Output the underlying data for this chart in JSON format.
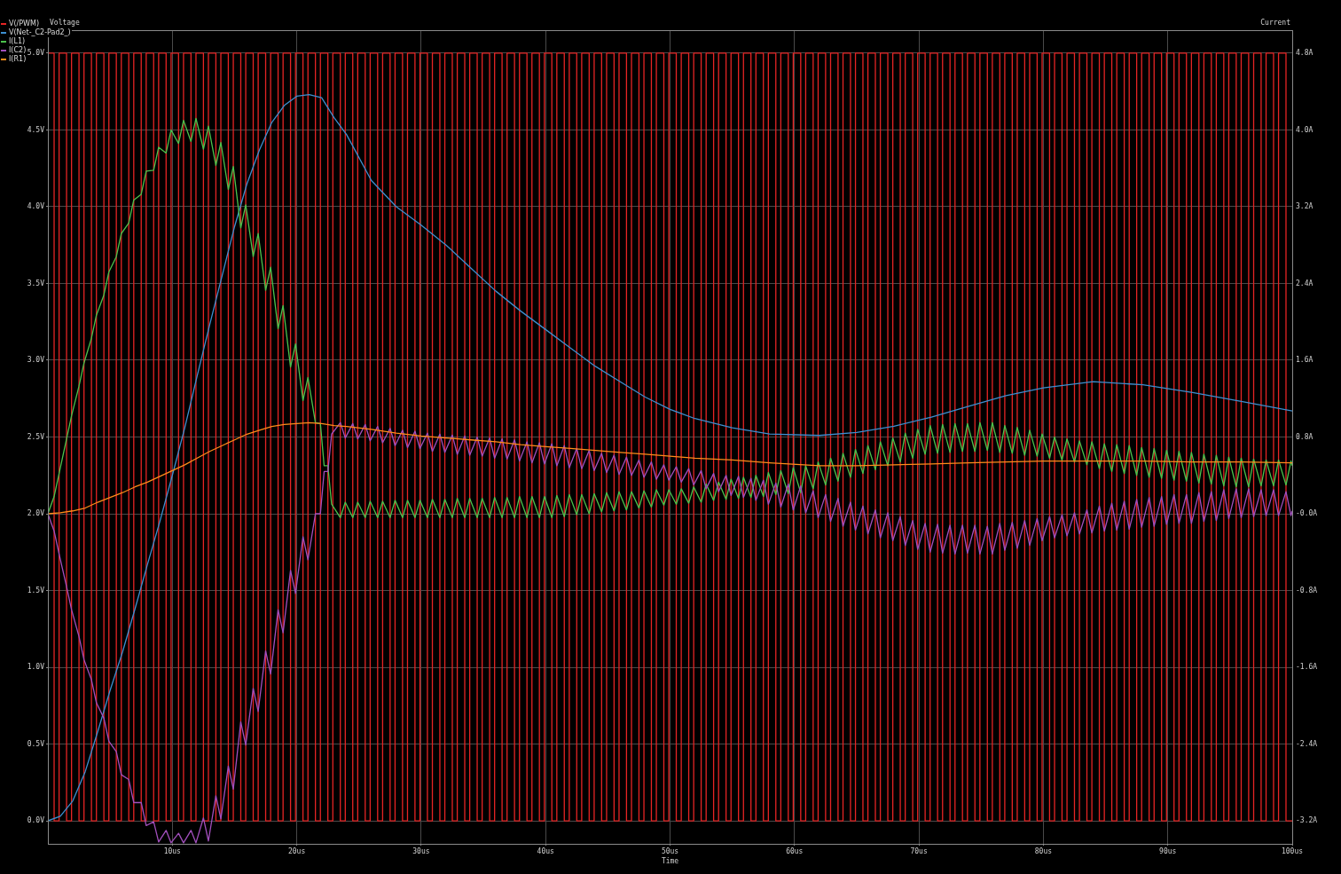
{
  "chart_data": {
    "type": "line",
    "xlabel": "Time",
    "ylabel": "Voltage",
    "y2label": "Current",
    "xlim": [
      0,
      100
    ],
    "ylim": [
      -0.15,
      5.15
    ],
    "y2lim": [
      -3.44,
      5.04
    ],
    "xticks": [
      {
        "value": 10,
        "label": "10us"
      },
      {
        "value": 20,
        "label": "20us"
      },
      {
        "value": 30,
        "label": "30us"
      },
      {
        "value": 40,
        "label": "40us"
      },
      {
        "value": 50,
        "label": "50us"
      },
      {
        "value": 60,
        "label": "60us"
      },
      {
        "value": 70,
        "label": "70us"
      },
      {
        "value": 80,
        "label": "80us"
      },
      {
        "value": 90,
        "label": "90us"
      },
      {
        "value": 100,
        "label": "100us"
      }
    ],
    "yticks": [
      {
        "value": 0,
        "label": "0.0V"
      },
      {
        "value": 0.5,
        "label": "0.5V"
      },
      {
        "value": 1,
        "label": "1.0V"
      },
      {
        "value": 1.5,
        "label": "1.5V"
      },
      {
        "value": 2,
        "label": "2.0V"
      },
      {
        "value": 2.5,
        "label": "2.5V"
      },
      {
        "value": 3,
        "label": "3.0V"
      },
      {
        "value": 3.5,
        "label": "3.5V"
      },
      {
        "value": 4,
        "label": "4.0V"
      },
      {
        "value": 4.5,
        "label": "4.5V"
      },
      {
        "value": 5,
        "label": "5.0V"
      }
    ],
    "y2ticks": [
      {
        "value": -3.2,
        "label": "-3.2A"
      },
      {
        "value": -2.4,
        "label": "-2.4A"
      },
      {
        "value": -1.6,
        "label": "-1.6A"
      },
      {
        "value": -0.8,
        "label": "-0.8A"
      },
      {
        "value": 0,
        "label": "-0.0A"
      },
      {
        "value": 0.8,
        "label": "0.8A"
      },
      {
        "value": 1.6,
        "label": "1.6A"
      },
      {
        "value": 2.4,
        "label": "2.4A"
      },
      {
        "value": 3.2,
        "label": "3.2A"
      },
      {
        "value": 4,
        "label": "4.0A"
      },
      {
        "value": 4.8,
        "label": "4.8A"
      }
    ],
    "grid": true,
    "legend": "top left",
    "series": [
      {
        "name": "V(/PWM)",
        "type": "step",
        "color": "#e52424",
        "x": [
          0,
          0.5,
          0.9,
          1.5,
          1.9,
          2.5,
          2.9,
          3.5,
          3.9,
          4.5,
          4.9,
          5.5,
          5.9,
          6.5,
          6.9,
          7.5,
          7.9,
          8.5,
          8.9,
          9.5,
          9.9,
          10.5,
          10.9,
          11.5,
          11.9,
          12.5,
          12.9,
          13.5,
          13.9,
          14.5,
          14.9,
          15.5,
          15.9,
          16.5,
          16.9,
          17.5,
          17.9,
          18.5,
          18.9,
          19.5,
          19.9,
          20.5,
          20.9,
          21.5,
          21.9,
          22.5,
          22.9,
          23.5,
          23.9,
          24.5,
          24.9,
          25.5,
          25.9,
          26.5,
          26.9,
          27.5,
          27.9,
          28.5,
          28.9,
          29.5,
          29.9,
          30.5,
          30.9,
          31.5,
          31.9,
          32.5,
          32.9,
          33.5,
          33.9,
          34.5,
          34.9,
          35.5,
          35.9,
          36.5,
          36.9,
          37.5,
          37.9,
          38.5,
          38.9,
          39.5,
          39.9,
          40.5,
          40.9,
          41.5,
          41.9,
          42.5,
          42.9,
          43.5,
          43.9,
          44.5,
          44.9,
          45.5,
          45.9,
          46.5,
          46.9,
          47.5,
          47.9,
          48.5,
          48.9,
          49.5,
          49.9,
          50.5,
          50.9,
          51.5,
          51.9,
          52.5,
          52.9,
          53.5,
          53.9,
          54.5,
          54.9,
          55.5,
          55.9,
          56.5,
          56.9,
          57.5,
          57.9,
          58.5,
          58.9,
          59.5,
          59.9,
          60.5,
          60.9,
          61.5,
          61.9,
          62.5,
          62.9,
          63.5,
          63.9,
          64.5,
          64.9,
          65.5,
          65.9,
          66.5,
          66.9,
          67.5,
          67.9,
          68.5,
          68.9,
          69.5,
          69.9,
          70.5,
          70.9,
          71.5,
          71.9,
          72.5,
          72.9,
          73.5,
          73.9,
          74.5,
          74.9,
          75.5,
          75.9,
          76.5,
          76.9,
          77.5,
          77.9,
          78.5,
          78.9,
          79.5,
          79.9,
          80.5,
          80.9,
          81.5,
          81.9,
          82.5,
          82.9,
          83.5,
          83.9,
          84.5,
          84.9,
          85.5,
          85.9,
          86.5,
          86.9,
          87.5,
          87.9,
          88.5,
          88.9,
          89.5,
          89.9,
          90.5,
          90.9,
          91.5,
          91.9,
          92.5,
          92.9,
          93.5,
          93.9,
          94.5,
          94.9,
          95.5,
          95.9,
          96.5,
          96.9,
          97.5,
          97.9,
          98.5,
          98.9,
          99.5,
          99.9,
          100
        ],
        "values": [
          0,
          5,
          0,
          5,
          0,
          5,
          0,
          5,
          0,
          5,
          0,
          5,
          0,
          5,
          0,
          5,
          0,
          5,
          0,
          5,
          0,
          5,
          0,
          5,
          0,
          5,
          0,
          5,
          0,
          5,
          0,
          5,
          0,
          5,
          0,
          5,
          0,
          5,
          0,
          5,
          0,
          5,
          0,
          5,
          0,
          5,
          0,
          5,
          0,
          5,
          0,
          5,
          0,
          5,
          0,
          5,
          0,
          5,
          0,
          5,
          0,
          5,
          0,
          5,
          0,
          5,
          0,
          5,
          0,
          5,
          0,
          5,
          0,
          5,
          0,
          5,
          0,
          5,
          0,
          5,
          0,
          5,
          0,
          5,
          0,
          5,
          0,
          5,
          0,
          5,
          0,
          5,
          0,
          5,
          0,
          5,
          0,
          5,
          0,
          5,
          0,
          5,
          0,
          5,
          0,
          5,
          0,
          5,
          0,
          5,
          0,
          5,
          0,
          5,
          0,
          5,
          0,
          5,
          0,
          5,
          0,
          5,
          0,
          5,
          0,
          5,
          0,
          5,
          0,
          5,
          0,
          5,
          0,
          5,
          0,
          5,
          0,
          5,
          0,
          5,
          0,
          5,
          0,
          5,
          0,
          5,
          0,
          5,
          0,
          5,
          0,
          5,
          0,
          5,
          0,
          5,
          0,
          5,
          0,
          5,
          0,
          5,
          0,
          5,
          0,
          5,
          0,
          5,
          0,
          5,
          0,
          5,
          0,
          5,
          0,
          5,
          0,
          5,
          0,
          5,
          0,
          5,
          0,
          5,
          0,
          5,
          0,
          5,
          0,
          5,
          0,
          5,
          0,
          5,
          0,
          5,
          0,
          5,
          0,
          5,
          0,
          0
        ]
      },
      {
        "name": "V(Net-_C2-Pad2_)",
        "type": "line",
        "color": "#3d8fd1",
        "x": [
          0,
          1,
          2,
          3,
          4,
          5,
          6,
          7,
          8,
          9,
          10,
          11,
          12,
          13,
          14,
          15,
          16,
          17,
          18,
          19,
          20,
          21,
          22,
          23,
          24,
          26,
          28,
          30,
          32,
          34,
          36,
          38,
          40,
          42,
          44,
          46,
          48,
          50,
          52,
          55,
          58,
          62,
          65,
          68,
          71,
          74,
          77,
          80,
          84,
          88,
          92,
          96,
          100
        ],
        "values": [
          0,
          0.03,
          0.13,
          0.32,
          0.58,
          0.85,
          1.1,
          1.38,
          1.67,
          1.95,
          2.25,
          2.56,
          2.9,
          3.23,
          3.55,
          3.87,
          4.15,
          4.37,
          4.55,
          4.66,
          4.72,
          4.73,
          4.71,
          4.58,
          4.47,
          4.17,
          4.0,
          3.88,
          3.75,
          3.6,
          3.45,
          3.32,
          3.2,
          3.08,
          2.96,
          2.86,
          2.76,
          2.68,
          2.62,
          2.56,
          2.52,
          2.51,
          2.53,
          2.57,
          2.63,
          2.7,
          2.77,
          2.82,
          2.86,
          2.84,
          2.79,
          2.73,
          2.67
        ]
      },
      {
        "name": "I(L1)",
        "type": "line",
        "axis": "y2",
        "color": "#4cc24c",
        "x": [
          0,
          0.5,
          0.9,
          1.5,
          1.9,
          2.5,
          2.9,
          3.5,
          3.9,
          4.5,
          4.9,
          5.5,
          5.9,
          6.5,
          6.9,
          7.5,
          7.9,
          8.5,
          8.9,
          9.5,
          9.9,
          10.5,
          10.9,
          11.5,
          11.9,
          12.5,
          12.9,
          13.5,
          13.9,
          14.5,
          14.9,
          15.5,
          15.9,
          16.5,
          16.9,
          17.5,
          17.9,
          18.5,
          18.9,
          19.5,
          19.9,
          20.5,
          20.9,
          21.5,
          21.9,
          22.2,
          22.5,
          22.8,
          23.5,
          23.9,
          24.5,
          24.9,
          25.5,
          25.9,
          26.5,
          26.9,
          27.5,
          27.9,
          28.5,
          28.9,
          29.5,
          29.9,
          30.5,
          30.9,
          31.5,
          31.9,
          32.5,
          32.9,
          33.5,
          33.9,
          34.5,
          34.9,
          35.5,
          35.9,
          36.5,
          36.9,
          37.5,
          37.9,
          38.5,
          38.9,
          39.5,
          39.9,
          40.5,
          40.9,
          41.5,
          41.9,
          42.5,
          42.9,
          43.5,
          43.9,
          44.5,
          44.9,
          45.5,
          45.9,
          46.5,
          46.9,
          47.5,
          47.9,
          48.5,
          48.9,
          49.5,
          49.9,
          50.5,
          50.9,
          51.5,
          51.9,
          52.5,
          52.9,
          53.5,
          53.9,
          54.5,
          54.9,
          55.5,
          55.9,
          56.5,
          56.9,
          57.5,
          57.9,
          58.5,
          58.9,
          59.5,
          59.9,
          60.5,
          60.9,
          61.5,
          61.9,
          62.5,
          62.9,
          63.5,
          63.9,
          64.5,
          64.9,
          65.5,
          65.9,
          66.5,
          66.9,
          67.5,
          67.9,
          68.5,
          68.9,
          69.5,
          69.9,
          70.5,
          70.9,
          71.5,
          71.9,
          72.5,
          72.9,
          73.5,
          73.9,
          74.5,
          74.9,
          75.5,
          75.9,
          76.5,
          76.9,
          77.5,
          77.9,
          78.5,
          78.9,
          79.5,
          79.9,
          80.5,
          80.9,
          81.5,
          81.9,
          82.5,
          82.9,
          83.5,
          83.9,
          84.5,
          84.9,
          85.5,
          85.9,
          86.5,
          86.9,
          87.5,
          87.9,
          88.5,
          88.9,
          89.5,
          89.9,
          90.5,
          90.9,
          91.5,
          91.9,
          92.5,
          92.9,
          93.5,
          93.9,
          94.5,
          94.9,
          95.5,
          95.9,
          96.5,
          96.9,
          97.5,
          97.9,
          98.5,
          98.9,
          99.5,
          99.9,
          100
        ],
        "values": [
          0,
          0.18,
          0.42,
          0.78,
          1.02,
          1.33,
          1.57,
          1.83,
          2.07,
          2.28,
          2.52,
          2.68,
          2.92,
          3.03,
          3.27,
          3.33,
          3.57,
          3.58,
          3.82,
          3.76,
          4.0,
          3.86,
          4.1,
          3.88,
          4.12,
          3.8,
          4.04,
          3.63,
          3.87,
          3.38,
          3.62,
          2.98,
          3.22,
          2.68,
          2.92,
          2.33,
          2.57,
          1.93,
          2.17,
          1.53,
          1.77,
          1.18,
          1.42,
          0.95,
          0.94,
          0.5,
          0.5,
          0.1,
          -0.04,
          0.12,
          -0.04,
          0.12,
          -0.04,
          0.13,
          -0.04,
          0.13,
          -0.04,
          0.14,
          -0.04,
          0.14,
          -0.04,
          0.14,
          -0.04,
          0.15,
          -0.04,
          0.15,
          -0.04,
          0.16,
          -0.04,
          0.16,
          -0.04,
          0.16,
          -0.04,
          0.17,
          -0.04,
          0.17,
          -0.04,
          0.18,
          -0.04,
          0.18,
          -0.04,
          0.18,
          -0.04,
          0.19,
          -0.03,
          0.2,
          -0.01,
          0.2,
          0,
          0.21,
          0.02,
          0.22,
          0.03,
          0.23,
          0.04,
          0.23,
          0.06,
          0.24,
          0.07,
          0.25,
          0.09,
          0.25,
          0.1,
          0.26,
          0.11,
          0.28,
          0.12,
          0.31,
          0.14,
          0.33,
          0.15,
          0.36,
          0.16,
          0.38,
          0.17,
          0.4,
          0.18,
          0.43,
          0.2,
          0.45,
          0.21,
          0.48,
          0.22,
          0.5,
          0.26,
          0.54,
          0.3,
          0.58,
          0.34,
          0.63,
          0.38,
          0.67,
          0.42,
          0.71,
          0.46,
          0.75,
          0.5,
          0.79,
          0.54,
          0.84,
          0.58,
          0.88,
          0.62,
          0.92,
          0.63,
          0.93,
          0.64,
          0.94,
          0.65,
          0.94,
          0.65,
          0.95,
          0.66,
          0.95,
          0.64,
          0.92,
          0.63,
          0.9,
          0.61,
          0.87,
          0.6,
          0.83,
          0.58,
          0.8,
          0.56,
          0.78,
          0.54,
          0.76,
          0.51,
          0.75,
          0.47,
          0.73,
          0.44,
          0.72,
          0.42,
          0.71,
          0.4,
          0.69,
          0.38,
          0.68,
          0.37,
          0.66,
          0.35,
          0.65,
          0.34,
          0.64,
          0.32,
          0.62,
          0.31,
          0.61,
          0.29,
          0.59,
          0.28,
          0.58,
          0.28,
          0.57,
          0.29,
          0.56,
          0.29,
          0.56,
          0.3,
          0.55,
          0.5
        ]
      },
      {
        "name": "I(C2)",
        "type": "line",
        "axis": "y2",
        "color": "#a24fbd",
        "x": [
          0,
          0.5,
          0.9,
          1.5,
          1.9,
          2.5,
          2.9,
          3.5,
          3.9,
          4.5,
          4.9,
          5.5,
          5.9,
          6.5,
          6.9,
          7.5,
          7.9,
          8.5,
          8.9,
          9.5,
          9.9,
          10.5,
          10.9,
          11.5,
          11.9,
          12.5,
          12.9,
          13.5,
          13.9,
          14.5,
          14.9,
          15.5,
          15.9,
          16.5,
          16.9,
          17.5,
          17.9,
          18.5,
          18.9,
          19.5,
          19.9,
          20.5,
          20.9,
          21.5,
          21.9,
          22.2,
          22.5,
          22.8,
          23.5,
          23.9,
          24.5,
          24.9,
          25.5,
          25.9,
          26.5,
          26.9,
          27.5,
          27.9,
          28.5,
          28.9,
          29.5,
          29.9,
          30.5,
          30.9,
          31.5,
          31.9,
          32.5,
          32.9,
          33.5,
          33.9,
          34.5,
          34.9,
          35.5,
          35.9,
          36.5,
          36.9,
          37.5,
          37.9,
          38.5,
          38.9,
          39.5,
          39.9,
          40.5,
          40.9,
          41.5,
          41.9,
          42.5,
          42.9,
          43.5,
          43.9,
          44.5,
          44.9,
          45.5,
          45.9,
          46.5,
          46.9,
          47.5,
          47.9,
          48.5,
          48.9,
          49.5,
          49.9,
          50.5,
          50.9,
          51.5,
          51.9,
          52.5,
          52.9,
          53.5,
          53.9,
          54.5,
          54.9,
          55.5,
          55.9,
          56.5,
          56.9,
          57.5,
          57.9,
          58.5,
          58.9,
          59.5,
          59.9,
          60.5,
          60.9,
          61.5,
          61.9,
          62.5,
          62.9,
          63.5,
          63.9,
          64.5,
          64.9,
          65.5,
          65.9,
          66.5,
          66.9,
          67.5,
          67.9,
          68.5,
          68.9,
          69.5,
          69.9,
          70.5,
          70.9,
          71.5,
          71.9,
          72.5,
          72.9,
          73.5,
          73.9,
          74.5,
          74.9,
          75.5,
          75.9,
          76.5,
          76.9,
          77.5,
          77.9,
          78.5,
          78.9,
          79.5,
          79.9,
          80.5,
          80.9,
          81.5,
          81.9,
          82.5,
          82.9,
          83.5,
          83.9,
          84.5,
          84.9,
          85.5,
          85.9,
          86.5,
          86.9,
          87.5,
          87.9,
          88.5,
          88.9,
          89.5,
          89.9,
          90.5,
          90.9,
          91.5,
          91.9,
          92.5,
          92.9,
          93.5,
          93.9,
          94.5,
          94.9,
          95.5,
          95.9,
          96.5,
          96.9,
          97.5,
          97.9,
          98.5,
          98.9,
          99.5,
          99.9,
          100
        ],
        "values": [
          0,
          -0.18,
          -0.42,
          -0.76,
          -1.0,
          -1.28,
          -1.52,
          -1.73,
          -1.97,
          -2.13,
          -2.37,
          -2.48,
          -2.72,
          -2.77,
          -3.01,
          -3.01,
          -3.25,
          -3.21,
          -3.42,
          -3.3,
          -3.43,
          -3.33,
          -3.43,
          -3.3,
          -3.43,
          -3.17,
          -3.41,
          -2.94,
          -3.18,
          -2.63,
          -2.87,
          -2.17,
          -2.41,
          -1.82,
          -2.06,
          -1.43,
          -1.67,
          -1.0,
          -1.24,
          -0.59,
          -0.83,
          -0.24,
          -0.48,
          0,
          0,
          0.44,
          0.44,
          0.83,
          0.95,
          0.79,
          0.94,
          0.78,
          0.93,
          0.76,
          0.91,
          0.74,
          0.89,
          0.71,
          0.87,
          0.69,
          0.86,
          0.68,
          0.84,
          0.65,
          0.83,
          0.64,
          0.82,
          0.62,
          0.81,
          0.61,
          0.8,
          0.6,
          0.79,
          0.58,
          0.78,
          0.57,
          0.77,
          0.55,
          0.75,
          0.53,
          0.74,
          0.52,
          0.73,
          0.5,
          0.71,
          0.48,
          0.68,
          0.47,
          0.66,
          0.45,
          0.63,
          0.43,
          0.61,
          0.41,
          0.59,
          0.4,
          0.56,
          0.38,
          0.54,
          0.36,
          0.51,
          0.35,
          0.49,
          0.33,
          0.47,
          0.3,
          0.45,
          0.26,
          0.42,
          0.23,
          0.4,
          0.19,
          0.39,
          0.17,
          0.37,
          0.14,
          0.35,
          0.1,
          0.32,
          0.07,
          0.31,
          0.04,
          0.29,
          0.01,
          0.24,
          -0.04,
          0.2,
          -0.08,
          0.16,
          -0.13,
          0.12,
          -0.17,
          0.08,
          -0.21,
          0.04,
          -0.25,
          0.01,
          -0.28,
          -0.03,
          -0.33,
          -0.07,
          -0.37,
          -0.1,
          -0.4,
          -0.11,
          -0.41,
          -0.12,
          -0.42,
          -0.12,
          -0.41,
          -0.12,
          -0.42,
          -0.13,
          -0.42,
          -0.1,
          -0.38,
          -0.09,
          -0.36,
          -0.07,
          -0.33,
          -0.05,
          -0.28,
          -0.03,
          -0.25,
          -0.01,
          -0.23,
          0.01,
          -0.21,
          0.04,
          -0.2,
          0.08,
          -0.18,
          0.11,
          -0.17,
          0.13,
          -0.16,
          0.15,
          -0.14,
          0.17,
          -0.13,
          0.18,
          -0.11,
          0.2,
          -0.1,
          0.2,
          -0.1,
          0.22,
          -0.08,
          0.23,
          -0.07,
          0.25,
          -0.05,
          0.26,
          -0.04,
          0.26,
          -0.03,
          0.25,
          -0.02,
          0.25,
          -0.02,
          0.23,
          -0.02,
          0.03
        ]
      },
      {
        "name": "I(R1)",
        "type": "line",
        "axis": "y2",
        "color": "#ff8c1a",
        "x": [
          0,
          1,
          2,
          3,
          4,
          5,
          6,
          7,
          8,
          9,
          10,
          11,
          12,
          13,
          14,
          15,
          16,
          17,
          18,
          19,
          20,
          21,
          22,
          23,
          24,
          26,
          28,
          30,
          32,
          34,
          36,
          38,
          40,
          42,
          44,
          46,
          48,
          50,
          52,
          55,
          58,
          62,
          65,
          68,
          71,
          74,
          77,
          80,
          84,
          88,
          92,
          96,
          100
        ],
        "values": [
          0,
          0.01,
          0.03,
          0.06,
          0.12,
          0.17,
          0.22,
          0.28,
          0.33,
          0.39,
          0.45,
          0.51,
          0.58,
          0.65,
          0.71,
          0.77,
          0.83,
          0.87,
          0.91,
          0.93,
          0.94,
          0.95,
          0.94,
          0.92,
          0.91,
          0.88,
          0.84,
          0.81,
          0.79,
          0.77,
          0.75,
          0.72,
          0.7,
          0.68,
          0.66,
          0.64,
          0.62,
          0.6,
          0.58,
          0.56,
          0.53,
          0.5,
          0.5,
          0.51,
          0.52,
          0.53,
          0.54,
          0.55,
          0.55,
          0.55,
          0.54,
          0.54,
          0.53
        ]
      }
    ]
  }
}
